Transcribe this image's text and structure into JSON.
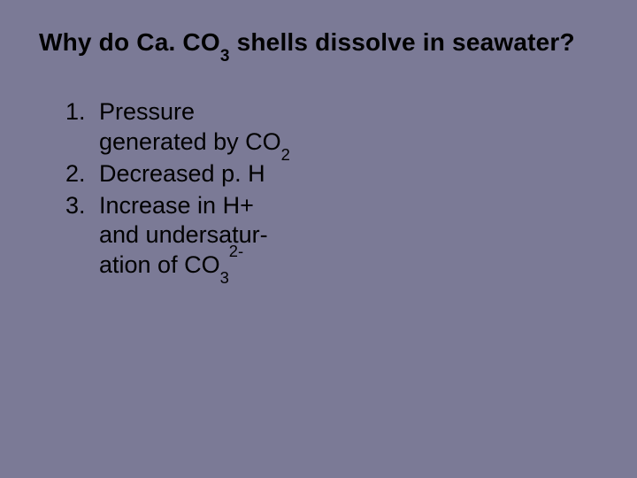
{
  "slide": {
    "background_color": "#7b7a96",
    "text_color": "#000000",
    "title_fontsize": 28,
    "body_fontsize": 27,
    "title": {
      "pre": "Why do Ca. CO",
      "sub": "3",
      "post": " shells dissolve in seawater?"
    },
    "items": [
      {
        "line1_pre": "Pressure",
        "line2_pre": "generated by CO",
        "line2_sub": "2",
        "line2_post": ""
      },
      {
        "line1_pre": "Decreased p. H"
      },
      {
        "line1_pre": "Increase in H+",
        "line2_pre": "and undersatur-",
        "line3_pre": "ation of CO",
        "line3_sub": "3",
        "line3_sup": "2-",
        "line3_post": ""
      }
    ]
  }
}
